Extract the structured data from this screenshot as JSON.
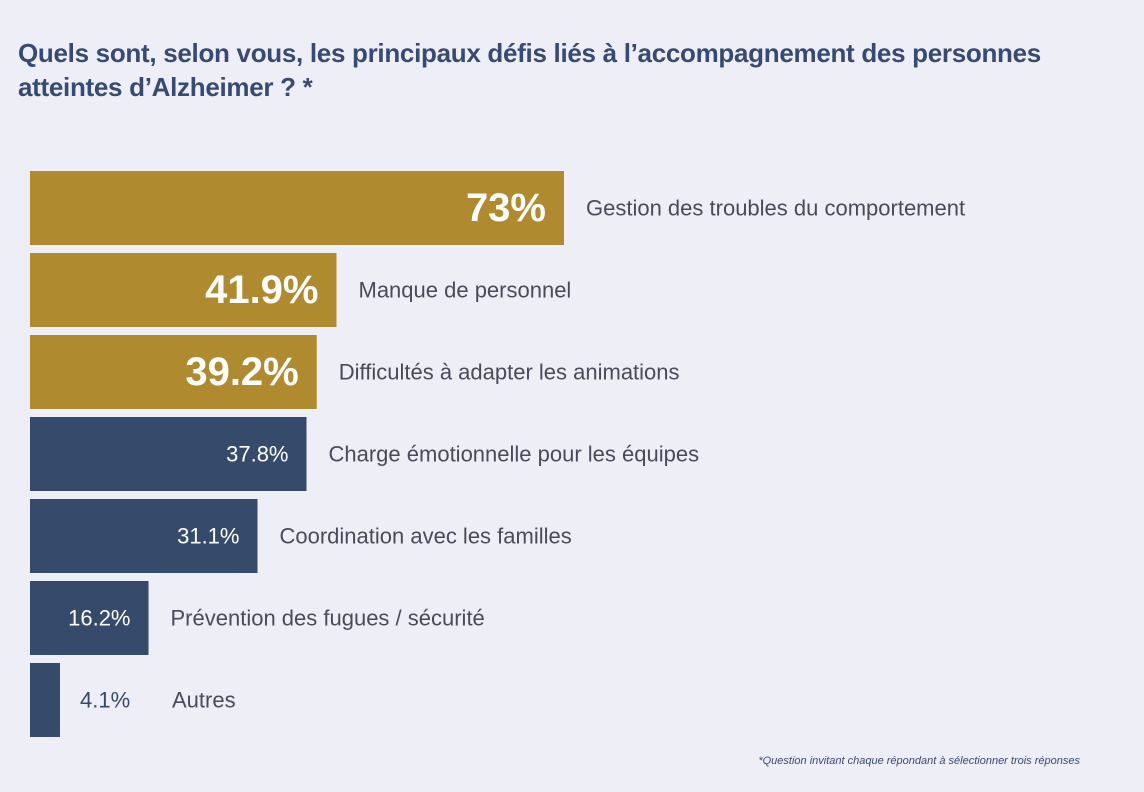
{
  "title": "Quels sont, selon vous, les principaux défis liés à l’accompagnement des personnes atteintes d’Alzheimer ? *",
  "footnote": "*Question invitant chaque répondant à sélectionner trois réponses",
  "colors": {
    "gold": "#b08a2e",
    "navy": "#364a6b",
    "label": "#4a4a5a",
    "background": "#eeeef7"
  },
  "chart_data": {
    "type": "bar",
    "orientation": "horizontal",
    "categories": [
      "Gestion des troubles du comportement",
      "Manque de personnel",
      "Difficultés à adapter les animations",
      "Charge émotionnelle pour les équipes",
      "Coordination avec les familles",
      "Prévention des fugues / sécurité",
      "Autres"
    ],
    "values": [
      73,
      41.9,
      39.2,
      37.8,
      31.1,
      16.2,
      4.1
    ],
    "value_labels": [
      "73%",
      "41.9%",
      "39.2%",
      "37.8%",
      "31.1%",
      "16.2%",
      "4.1%"
    ],
    "bar_colors": [
      "gold",
      "gold",
      "gold",
      "navy",
      "navy",
      "navy",
      "navy"
    ],
    "highlighted": [
      true,
      true,
      true,
      false,
      false,
      false,
      false
    ],
    "xlim": [
      0,
      73
    ],
    "unit": "%",
    "grid": false,
    "legend": "none"
  }
}
